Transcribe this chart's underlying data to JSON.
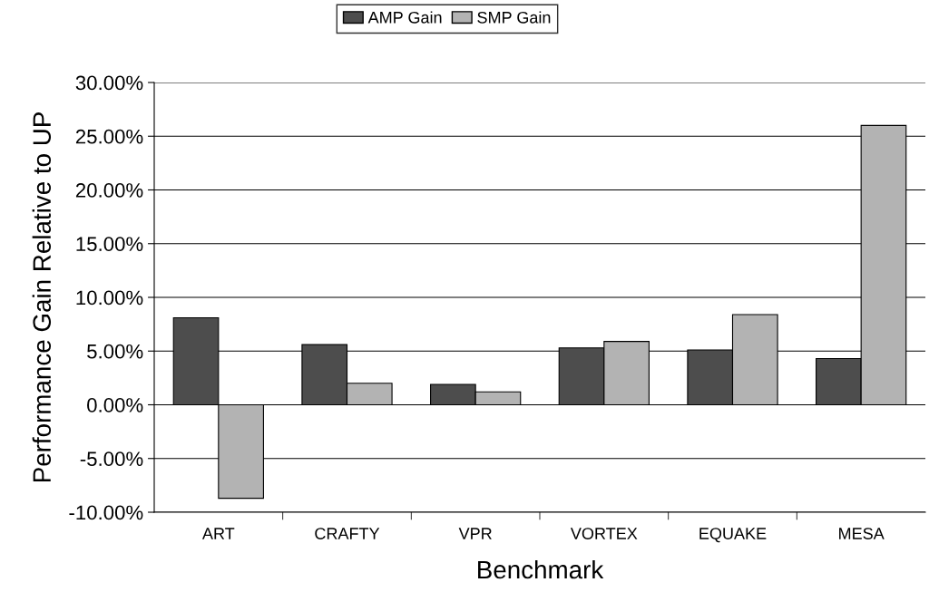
{
  "chart_data": {
    "type": "bar",
    "xlabel": "Benchmark",
    "ylabel": "Performance Gain Relative to UP",
    "categories": [
      "ART",
      "CRAFTY",
      "VPR",
      "VORTEX",
      "EQUAKE",
      "MESA"
    ],
    "series": [
      {
        "name": "AMP Gain",
        "color": "#4d4d4d",
        "values": [
          8.1,
          5.6,
          1.9,
          5.3,
          5.1,
          4.3
        ]
      },
      {
        "name": "SMP Gain",
        "color": "#b3b3b3",
        "values": [
          -8.7,
          2.0,
          1.2,
          5.9,
          8.4,
          26.0
        ]
      }
    ],
    "ylim": [
      -10,
      30
    ],
    "yticks": [
      {
        "value": -10,
        "label": "-10.00%"
      },
      {
        "value": -5,
        "label": "-5.00%"
      },
      {
        "value": 0,
        "label": "0.00%"
      },
      {
        "value": 5,
        "label": "5.00%"
      },
      {
        "value": 10,
        "label": "10.00%"
      },
      {
        "value": 15,
        "label": "15.00%"
      },
      {
        "value": 20,
        "label": "20.00%"
      },
      {
        "value": 25,
        "label": "25.00%"
      },
      {
        "value": 30,
        "label": "30.00%"
      }
    ],
    "grid": "y",
    "legend": "top"
  }
}
